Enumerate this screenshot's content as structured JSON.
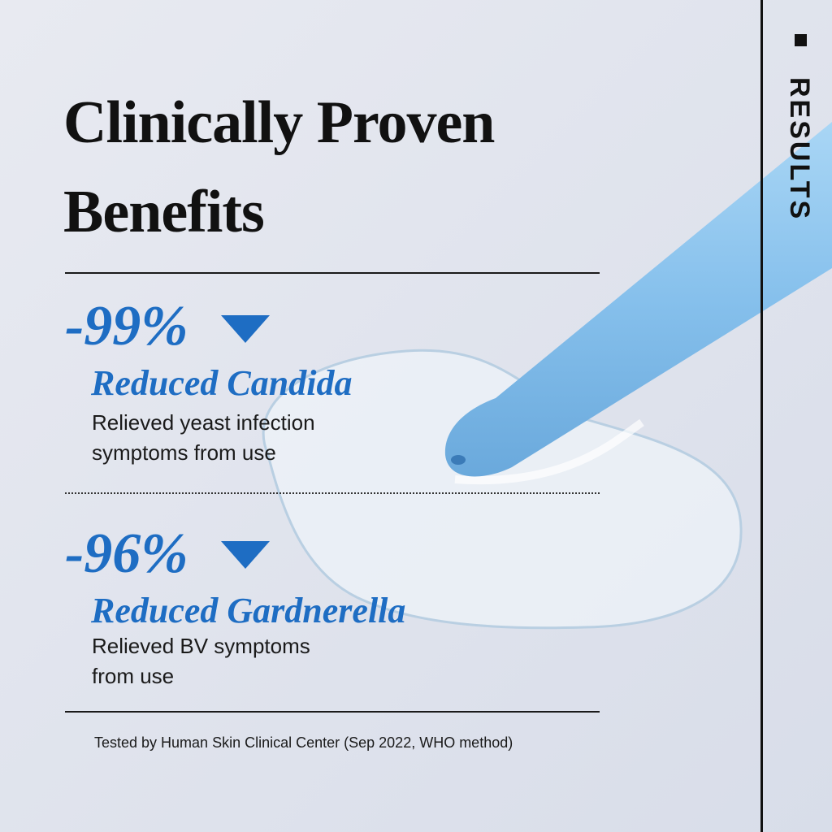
{
  "header": {
    "title_lines": [
      "Clinically Proven",
      "Benefits"
    ],
    "side_label": "RESULTS"
  },
  "results": [
    {
      "stat": "-99%",
      "label": "Reduced Candida",
      "description_lines": [
        "Relieved yeast infection",
        "symptoms from use"
      ]
    },
    {
      "stat": "-96%",
      "label": "Reduced Gardnerella",
      "description_lines": [
        "Relieved BV symptoms",
        "from use"
      ]
    }
  ],
  "footer": {
    "note": "Tested by Human Skin Clinical Center (Sep 2022, WHO method)"
  }
}
